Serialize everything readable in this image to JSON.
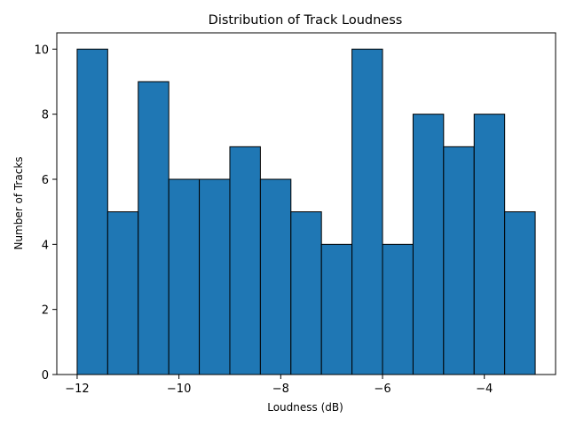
{
  "chart_data": {
    "type": "bar",
    "title": "Distribution of Track Loudness",
    "xlabel": "Loudness (dB)",
    "ylabel": "Number of Tracks",
    "bin_edges": [
      -12.0,
      -11.4,
      -10.8,
      -10.2,
      -9.6,
      -9.0,
      -8.4,
      -7.8,
      -7.2,
      -6.6,
      -6.0,
      -5.4,
      -4.8,
      -4.2,
      -3.6,
      -3.0
    ],
    "values": [
      10,
      5,
      9,
      6,
      6,
      7,
      6,
      5,
      4,
      10,
      4,
      8,
      7,
      8,
      5
    ],
    "xlim": [
      -12.4,
      -2.6
    ],
    "ylim": [
      0,
      10.5
    ],
    "xticks": [
      -12,
      -10,
      -8,
      -6,
      -4
    ],
    "xtick_labels": [
      "−12",
      "−10",
      "−8",
      "−6",
      "−4"
    ],
    "yticks": [
      0,
      2,
      4,
      6,
      8,
      10
    ],
    "ytick_labels": [
      "0",
      "2",
      "4",
      "6",
      "8",
      "10"
    ],
    "grid": false,
    "bar_color": "#1f77b4",
    "edge_color": "#000000"
  }
}
